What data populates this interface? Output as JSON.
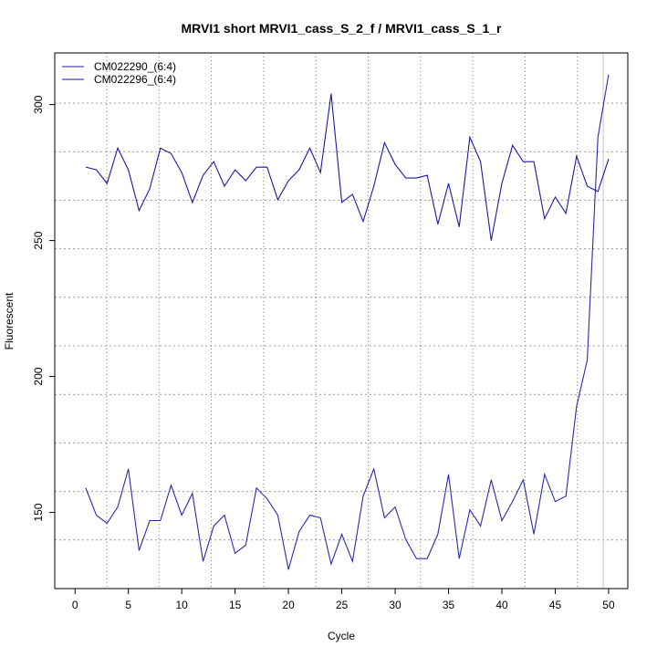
{
  "chart_data": {
    "type": "line",
    "title": "MRVI1 short MRVI1_cass_S_2_f / MRVI1_cass_S_1_r",
    "xlabel": "Cycle",
    "ylabel": "Fluorescent",
    "xlim": [
      -1.9,
      51.8
    ],
    "ylim": [
      122,
      319
    ],
    "xticks": [
      0,
      5,
      10,
      15,
      20,
      25,
      30,
      35,
      40,
      45,
      50
    ],
    "yticks": [
      150,
      200,
      250,
      300
    ],
    "grid": true,
    "legend_position": "top-left",
    "threshold_cycle_marker": 49.5,
    "x": [
      1,
      2,
      3,
      4,
      5,
      6,
      7,
      8,
      9,
      10,
      11,
      12,
      13,
      14,
      15,
      16,
      17,
      18,
      19,
      20,
      21,
      22,
      23,
      24,
      25,
      26,
      27,
      28,
      29,
      30,
      31,
      32,
      33,
      34,
      35,
      36,
      37,
      38,
      39,
      40,
      41,
      42,
      43,
      44,
      45,
      46,
      47,
      48,
      49,
      50
    ],
    "series": [
      {
        "name": "CM022290_(6:4)",
        "color": "#1a1aa0",
        "values": [
          277,
          276,
          271,
          284,
          276,
          261,
          269,
          284,
          282,
          275,
          264,
          274,
          279,
          270,
          276,
          272,
          277,
          277,
          265,
          272,
          276,
          284,
          275,
          304,
          264,
          267,
          257,
          270,
          286,
          278,
          273,
          273,
          274,
          256,
          271,
          255,
          288,
          279,
          250,
          271,
          285,
          279,
          279,
          258,
          266,
          260,
          281,
          270,
          268,
          280
        ]
      },
      {
        "name": "CM022296_(6:4)",
        "color": "#2a2ab0",
        "values": [
          159,
          149,
          146,
          152,
          166,
          136,
          147,
          147,
          160,
          149,
          157,
          132,
          145,
          149,
          135,
          138,
          159,
          155,
          149,
          129,
          143,
          149,
          148,
          131,
          142,
          132,
          156,
          166,
          148,
          152,
          140,
          133,
          133,
          142,
          164,
          133,
          151,
          145,
          162,
          147,
          154,
          162,
          142,
          164,
          154,
          156,
          189,
          206,
          288,
          311
        ]
      }
    ]
  }
}
